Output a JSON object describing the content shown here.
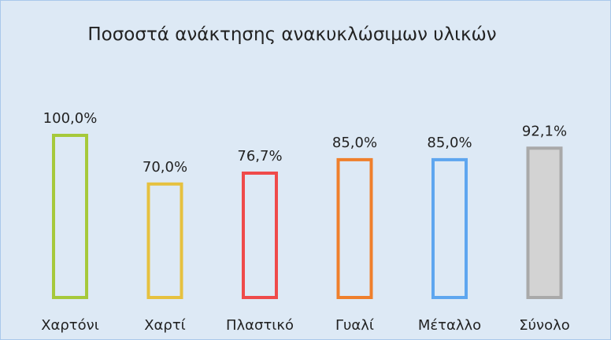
{
  "chart_data": {
    "type": "bar",
    "title": "Ποσοστά ανάκτησης ανακυκλώσιμων υλικών",
    "categories": [
      "Χαρτόνι",
      "Χαρτί",
      "Πλαστικό",
      "Γυαλί",
      "Μέταλλο",
      "Σύνολο"
    ],
    "values": [
      100,
      70,
      76.7,
      85,
      85,
      92.1
    ],
    "value_labels": [
      "100,0%",
      "70,0%",
      "76,7%",
      "85,0%",
      "85,0%",
      "92,1%"
    ],
    "colors": [
      "#a6c93b",
      "#e6c13f",
      "#ef4a4a",
      "#ef7f2c",
      "#5ea6ef",
      "#a9a9a9"
    ],
    "fill_colors": [
      "none",
      "none",
      "none",
      "none",
      "none",
      "#d3d3d3"
    ]
  }
}
